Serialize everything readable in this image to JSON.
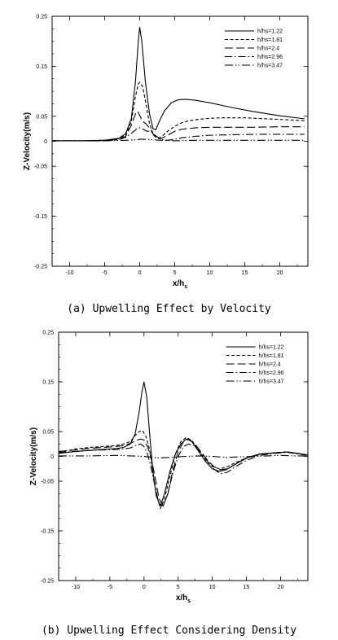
{
  "chart_data": [
    {
      "type": "line",
      "caption": "(a) Upwelling Effect by Velocity",
      "xlabel": "x/h",
      "xlabel_sub": "s",
      "ylabel": "Z-Velocity(m/s)",
      "xlim": [
        -12.5,
        24
      ],
      "ylim": [
        -0.25,
        0.25
      ],
      "xticks": [
        -10,
        -5,
        0,
        5,
        10,
        15,
        20
      ],
      "yticks": [
        -0.25,
        -0.15,
        -0.05,
        0,
        0.05,
        0.15,
        0.25
      ],
      "yticklabels": [
        "-0.25",
        "-0.15",
        "-0.05",
        "0",
        "0.05",
        "0.15",
        "0.25"
      ],
      "grid": false,
      "legend_position": "top-right",
      "series": [
        {
          "name": "h/hs=1.22",
          "dash": "solid",
          "x": [
            -12.5,
            -8,
            -5,
            -3,
            -2,
            -1.2,
            -0.6,
            -0.2,
            0,
            0.3,
            0.8,
            1.4,
            1.9,
            2.3,
            2.8,
            3.5,
            4.5,
            5.5,
            6.5,
            8,
            10,
            13,
            16,
            20,
            23.5
          ],
          "y": [
            0.001,
            0.001,
            0.002,
            0.006,
            0.015,
            0.045,
            0.12,
            0.2,
            0.228,
            0.2,
            0.12,
            0.055,
            0.025,
            0.023,
            0.04,
            0.06,
            0.077,
            0.083,
            0.084,
            0.082,
            0.077,
            0.068,
            0.06,
            0.051,
            0.045
          ]
        },
        {
          "name": "h/hs=1.81",
          "dash": "short-dash",
          "x": [
            -12.5,
            -8,
            -5,
            -3,
            -2,
            -1.2,
            -0.6,
            -0.2,
            0,
            0.4,
            0.9,
            1.4,
            2,
            2.5,
            3,
            4,
            5,
            6,
            7,
            8.5,
            10,
            12,
            15,
            18,
            21,
            23.5
          ],
          "y": [
            0.001,
            0.001,
            0.002,
            0.005,
            0.012,
            0.04,
            0.09,
            0.115,
            0.118,
            0.11,
            0.075,
            0.035,
            0.012,
            0.006,
            0.008,
            0.02,
            0.03,
            0.037,
            0.041,
            0.044,
            0.046,
            0.047,
            0.047,
            0.045,
            0.043,
            0.041
          ]
        },
        {
          "name": "h/hs=2.4",
          "dash": "long-dash",
          "x": [
            -12.5,
            -8,
            -5,
            -3,
            -2,
            -1.2,
            -0.6,
            -0.3,
            0,
            0.4,
            0.9,
            1.5,
            2,
            2.5,
            3,
            4,
            5,
            6,
            8,
            10,
            13,
            16,
            20,
            23.5
          ],
          "y": [
            0.001,
            0.001,
            0.002,
            0.004,
            0.01,
            0.032,
            0.055,
            0.06,
            0.052,
            0.04,
            0.035,
            0.025,
            0.012,
            0.006,
            0.005,
            0.012,
            0.02,
            0.024,
            0.027,
            0.028,
            0.028,
            0.028,
            0.029,
            0.029
          ]
        },
        {
          "name": "h/hs=2.96",
          "dash": "dash-dot",
          "x": [
            -12.5,
            -8,
            -5,
            -3,
            -2,
            -1,
            -0.4,
            0,
            0.5,
            1,
            1.6,
            2.2,
            3,
            4,
            5,
            6,
            8,
            10,
            13,
            17,
            20,
            23.5
          ],
          "y": [
            0.001,
            0.001,
            0.001,
            0.003,
            0.008,
            0.018,
            0.025,
            0.027,
            0.024,
            0.02,
            0.02,
            0.012,
            0.004,
            0.002,
            0.004,
            0.007,
            0.01,
            0.012,
            0.013,
            0.014,
            0.014,
            0.014
          ]
        },
        {
          "name": "h/hs=3.47",
          "dash": "dash-dot-dot",
          "x": [
            -12.5,
            -5,
            -2,
            -0.5,
            0,
            1,
            2,
            3,
            5,
            8,
            12,
            16,
            20,
            23.5
          ],
          "y": [
            0.001,
            0.001,
            0.002,
            0.003,
            0.004,
            0.004,
            0.003,
            0.002,
            0.001,
            0.002,
            0.002,
            0.002,
            0.002,
            0.002
          ]
        }
      ]
    },
    {
      "type": "line",
      "caption": "(b) Upwelling Effect Considering Density",
      "xlabel": "x/h",
      "xlabel_sub": "s",
      "ylabel": "Z-Velocity(m/s)",
      "xlim": [
        -12.5,
        24
      ],
      "ylim": [
        -0.25,
        0.25
      ],
      "xticks": [
        -10,
        -5,
        0,
        5,
        10,
        15,
        20
      ],
      "yticks": [
        -0.25,
        -0.15,
        -0.05,
        0,
        0.05,
        0.15,
        0.25
      ],
      "yticklabels": [
        "-0.25",
        "-0.15",
        "-0.05",
        "0",
        "0.05",
        "0.15",
        "0.25"
      ],
      "grid": false,
      "legend_position": "top-right",
      "series": [
        {
          "name": "h/hs=1.22",
          "dash": "solid",
          "x": [
            -12.5,
            -10,
            -8,
            -6,
            -4,
            -3,
            -2,
            -1.3,
            -0.7,
            -0.3,
            0,
            0.4,
            0.8,
            1.3,
            1.8,
            2.4,
            3,
            3.8,
            4.6,
            5.4,
            6.2,
            7,
            8,
            9,
            10,
            11,
            12,
            13.5,
            15,
            17,
            19,
            21,
            22.5,
            24
          ],
          "y": [
            0.006,
            0.01,
            0.012,
            0.014,
            0.016,
            0.018,
            0.025,
            0.045,
            0.09,
            0.13,
            0.15,
            0.12,
            0.05,
            -0.03,
            -0.08,
            -0.1,
            -0.075,
            -0.03,
            0.005,
            0.025,
            0.035,
            0.03,
            0.01,
            -0.01,
            -0.025,
            -0.03,
            -0.027,
            -0.015,
            -0.003,
            0.005,
            0.007,
            0.009,
            0.006,
            0.003
          ]
        },
        {
          "name": "h/hs=1.81",
          "dash": "short-dash",
          "x": [
            -12.5,
            -10,
            -8,
            -6,
            -4,
            -3,
            -2,
            -1.3,
            -0.7,
            -0.2,
            0.3,
            0.8,
            1.3,
            1.8,
            2.4,
            3,
            3.8,
            4.6,
            5.4,
            6.2,
            7,
            8,
            9,
            10,
            11,
            12,
            13.5,
            15,
            17,
            19,
            21,
            22.5,
            24
          ],
          "y": [
            0.008,
            0.015,
            0.018,
            0.02,
            0.022,
            0.025,
            0.03,
            0.042,
            0.05,
            0.052,
            0.04,
            0.015,
            -0.03,
            -0.075,
            -0.105,
            -0.085,
            -0.04,
            0.005,
            0.03,
            0.038,
            0.032,
            0.012,
            -0.008,
            -0.02,
            -0.025,
            -0.022,
            -0.012,
            -0.003,
            0.004,
            0.007,
            0.009,
            0.006,
            0.003
          ]
        },
        {
          "name": "h/hs=2.4",
          "dash": "long-dash",
          "x": [
            -12.5,
            -10,
            -8,
            -6,
            -4,
            -3,
            -2,
            -1.2,
            -0.5,
            0,
            0.5,
            1,
            1.6,
            2.2,
            2.8,
            3.5,
            4.2,
            5,
            5.8,
            6.5,
            7.3,
            8.2,
            9.2,
            10.2,
            11.2,
            12.2,
            13.5,
            15,
            17,
            19,
            21,
            22.5,
            24
          ],
          "y": [
            0.01,
            0.013,
            0.016,
            0.018,
            0.02,
            0.022,
            0.026,
            0.032,
            0.035,
            0.033,
            0.02,
            0,
            -0.04,
            -0.085,
            -0.1,
            -0.075,
            -0.03,
            0.01,
            0.03,
            0.035,
            0.028,
            0.012,
            -0.006,
            -0.02,
            -0.027,
            -0.025,
            -0.015,
            -0.004,
            0.004,
            0.007,
            0.009,
            0.006,
            0.003
          ]
        },
        {
          "name": "h/hs=2.96",
          "dash": "dash-dot",
          "x": [
            -12.5,
            -10,
            -8,
            -6,
            -4,
            -3,
            -2,
            -1.2,
            -0.5,
            0,
            0.5,
            1,
            1.6,
            2.2,
            2.8,
            3.5,
            4.2,
            5,
            5.8,
            6.5,
            7.3,
            8.2,
            9.2,
            10.2,
            11.2,
            12.2,
            13.5,
            15,
            17,
            19,
            21,
            22.5,
            24
          ],
          "y": [
            0.008,
            0.01,
            0.012,
            0.013,
            0.014,
            0.015,
            0.017,
            0.022,
            0.025,
            0.02,
            0.005,
            -0.02,
            -0.06,
            -0.095,
            -0.1,
            -0.075,
            -0.035,
            0,
            0.02,
            0.025,
            0.022,
            0.01,
            -0.008,
            -0.025,
            -0.035,
            -0.032,
            -0.02,
            -0.008,
            0.002,
            0.006,
            0.008,
            0.005,
            0.002
          ]
        },
        {
          "name": "h/hs=3.47",
          "dash": "dash-dot-dot",
          "x": [
            -12.5,
            -8,
            -4,
            -2,
            0,
            2,
            4,
            6,
            8,
            10,
            12,
            14,
            16,
            18,
            20,
            22,
            24
          ],
          "y": [
            0.001,
            0.001,
            0.002,
            0.001,
            0,
            -0.003,
            -0.002,
            0,
            0.001,
            0,
            -0.002,
            -0.001,
            0,
            0.001,
            0.002,
            0.001,
            0.001
          ]
        }
      ]
    }
  ]
}
